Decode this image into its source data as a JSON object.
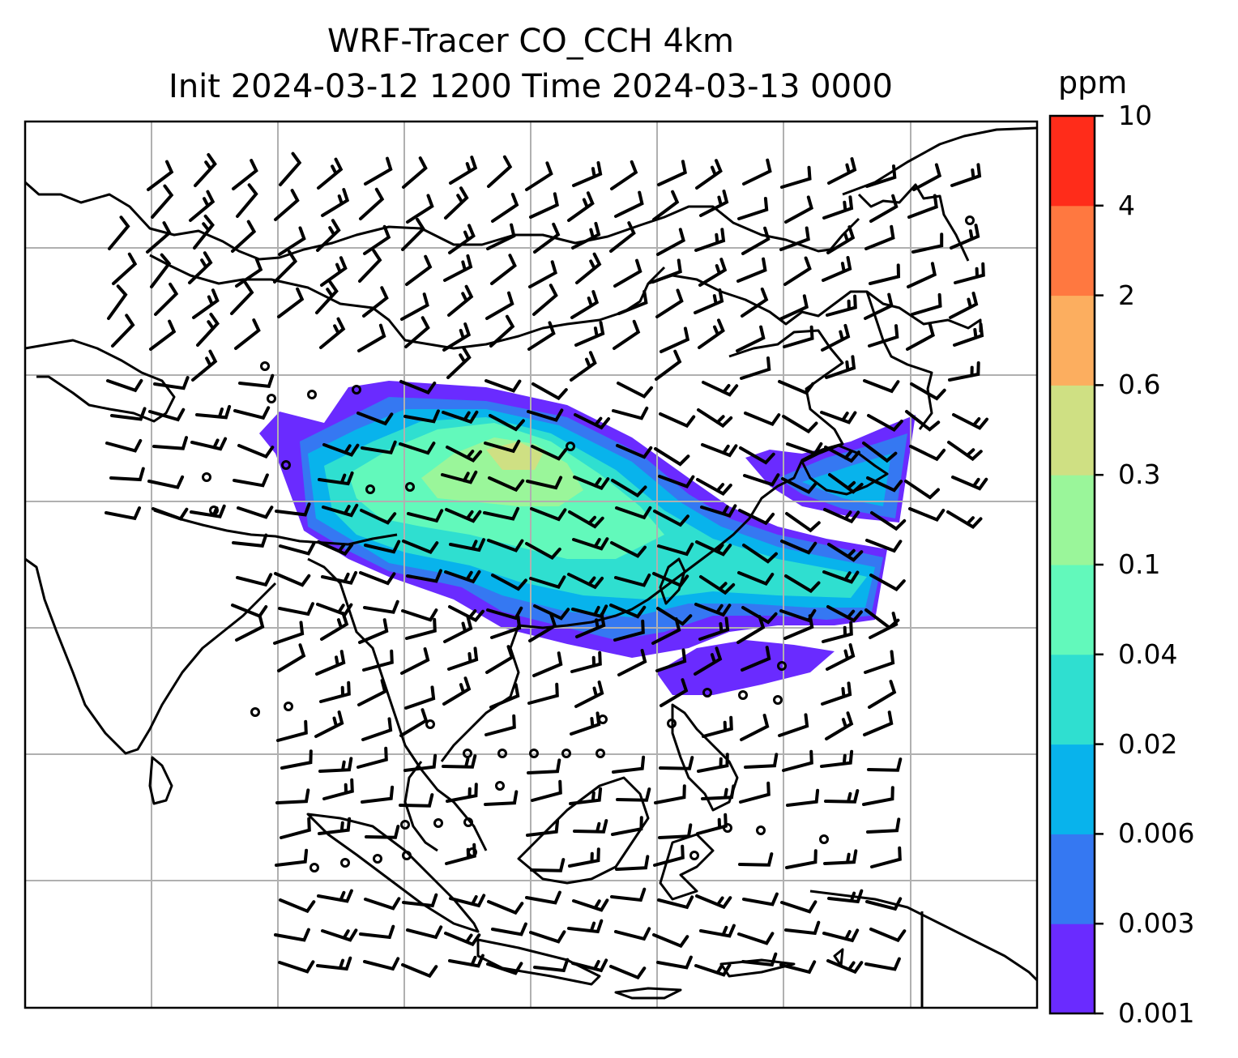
{
  "title": {
    "line1": "WRF-Tracer CO_CCH 4km",
    "line2": "Init 2024-03-12 1200 Time 2024-03-13 0000"
  },
  "colorbar": {
    "unit": "ppm",
    "levels": [
      "0.001",
      "0.003",
      "0.006",
      "0.02",
      "0.04",
      "0.1",
      "0.3",
      "0.6",
      "2",
      "4",
      "10"
    ],
    "colors": [
      "#6a2bff",
      "#3578f2",
      "#08b3ec",
      "#2fdfd0",
      "#62f9bb",
      "#9af69a",
      "#cfe083",
      "#fcae5f",
      "#ff7840",
      "#ff2c1a"
    ]
  },
  "map": {
    "gridlines": true,
    "variable": "CO_CCH tracer concentration",
    "wind": "wind barbs",
    "coastline_color": "#000000",
    "grid_color": "#b0b0b0"
  }
}
